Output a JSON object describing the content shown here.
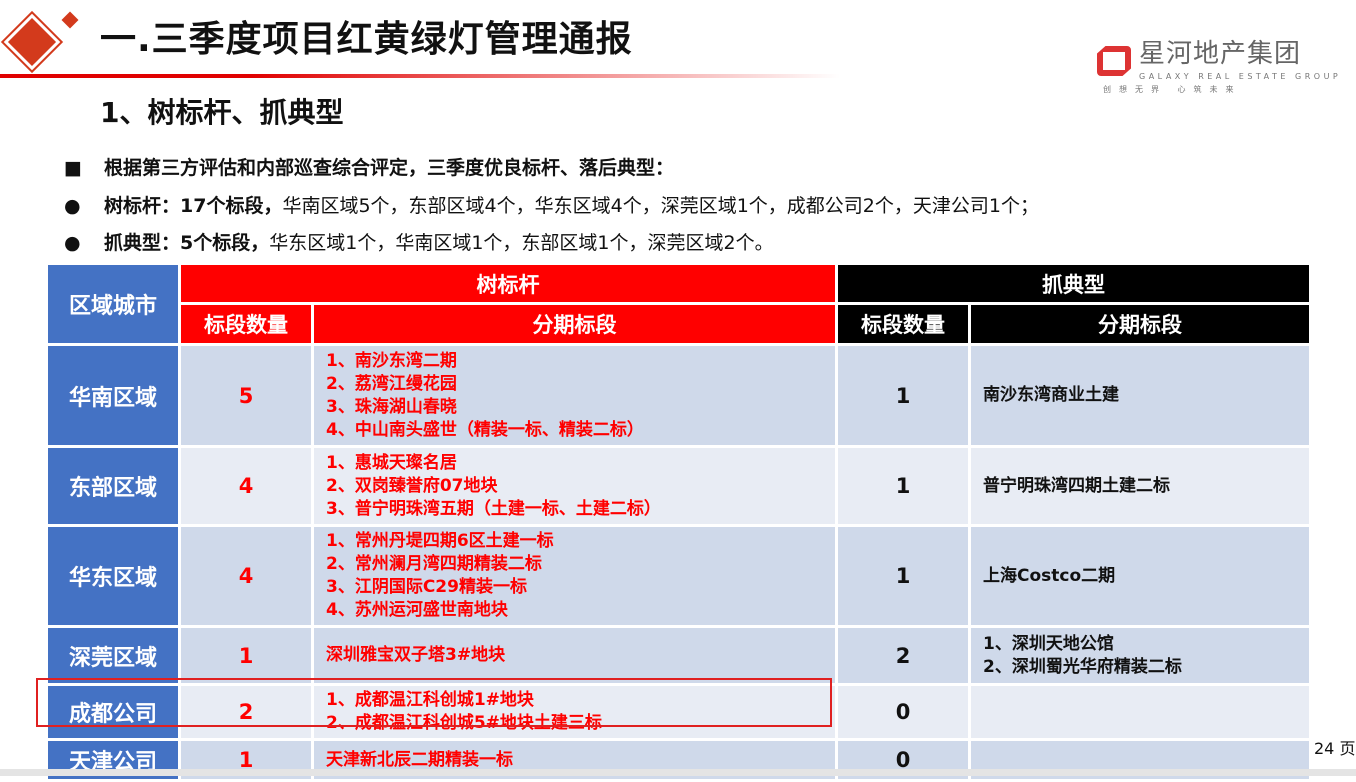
{
  "header": {
    "title": "一.三季度项目红黄绿灯管理通报",
    "subtitle": "1、树标杆、抓典型"
  },
  "brand": {
    "name": "星河地产集团",
    "english": "GALAXY REAL ESTATE GROUP",
    "slogan": "创想无界 心筑未来"
  },
  "summary": [
    {
      "marker": "■",
      "bold": "根据第三方评估和内部巡查综合评定，三季度优良标杆、落后典型：",
      "rest": ""
    },
    {
      "marker": "●",
      "bold": "树标杆：17个标段，",
      "rest": "华南区域5个，东部区域4个，华东区域4个，深莞区域1个，成都公司2个，天津公司1个；"
    },
    {
      "marker": "●",
      "bold": "抓典型：5个标段，",
      "rest": "华东区域1个，华南区域1个，东部区域1个，深莞区域2个。"
    }
  ],
  "table": {
    "headers": {
      "region": "区域城市",
      "benchmark": "树标杆",
      "typical": "抓典型",
      "count": "标段数量",
      "sections": "分期标段"
    },
    "rows": [
      {
        "region": "华南区域",
        "b_count": "5",
        "b_items": [
          "1、南沙东湾二期",
          "2、荔湾江缦花园",
          "3、珠海湖山春晓",
          "4、中山南头盛世（精装一标、精装二标）"
        ],
        "t_count": "1",
        "t_items": [
          "南沙东湾商业土建"
        ]
      },
      {
        "region": "东部区域",
        "b_count": "4",
        "b_items": [
          "1、惠城天璨名居",
          "2、双岗臻誉府07地块",
          "3、普宁明珠湾五期（土建一标、土建二标）"
        ],
        "t_count": "1",
        "t_items": [
          "普宁明珠湾四期土建二标"
        ]
      },
      {
        "region": "华东区域",
        "b_count": "4",
        "b_items": [
          "1、常州丹堤四期6区土建一标",
          "2、常州澜月湾四期精装二标",
          "3、江阴国际C29精装一标",
          "4、苏州运河盛世南地块"
        ],
        "t_count": "1",
        "t_items": [
          "上海Costco二期"
        ]
      },
      {
        "region": "深莞区域",
        "b_count": "1",
        "b_items": [
          "深圳雅宝双子塔3#地块"
        ],
        "t_count": "2",
        "t_items": [
          "1、深圳天地公馆",
          "2、深圳蜀光华府精装二标"
        ]
      },
      {
        "region": "成都公司",
        "b_count": "2",
        "b_items": [
          "1、成都温江科创城1#地块",
          "2、成都温江科创城5#地块土建三标"
        ],
        "t_count": "0",
        "t_items": []
      },
      {
        "region": "天津公司",
        "b_count": "1",
        "b_items": [
          "天津新北辰二期精装一标"
        ],
        "t_count": "0",
        "t_items": []
      }
    ]
  },
  "footer": {
    "page": "24 页"
  },
  "colors": {
    "region": "#4472c4",
    "benchmark_header": "#ff0000",
    "typical_header": "#000000",
    "highlight": "#e02020"
  }
}
